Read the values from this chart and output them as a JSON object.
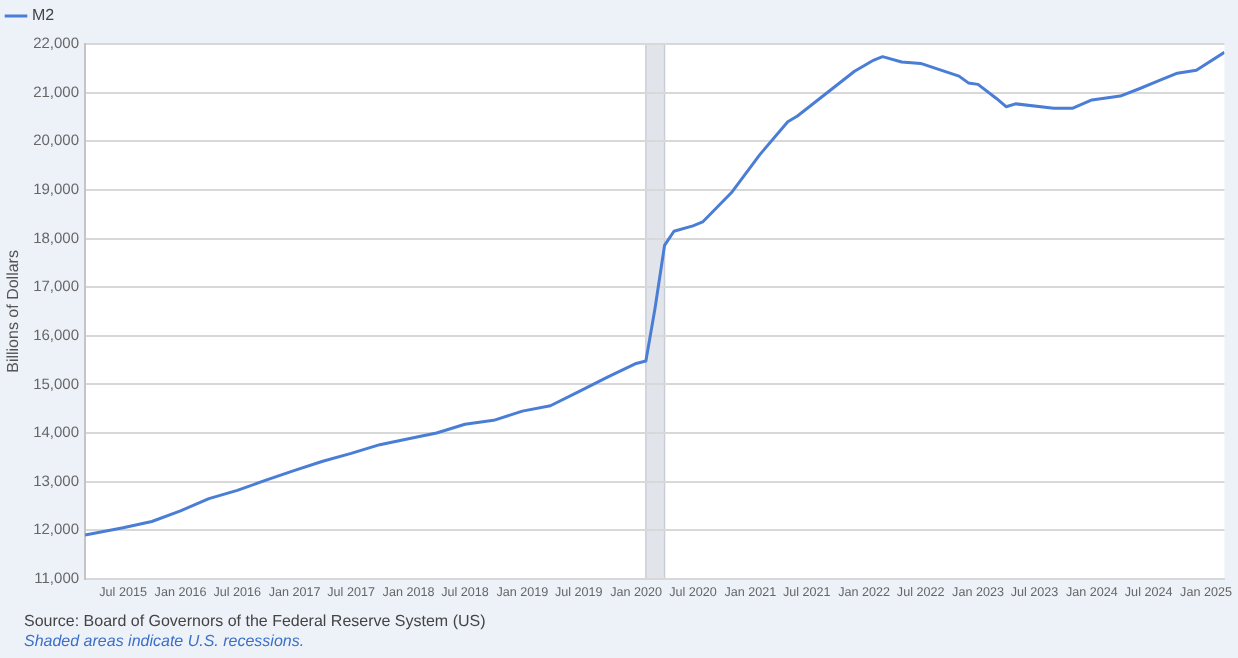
{
  "chart_data": {
    "type": "line",
    "ylabel": "Billions of Dollars",
    "legend": "top left",
    "grid": "y",
    "marker": "none",
    "line_style": "solid",
    "annotations": [
      "Source: Board of Governors of the Federal Reserve System (US)",
      "Shaded areas indicate U.S. recessions."
    ],
    "bands": [
      {
        "axis": "x",
        "from": "2020-02",
        "to": "2020-04",
        "color": "#e1e4ea"
      }
    ],
    "xlim": [
      "2015-03",
      "2025-03"
    ],
    "xticks": [
      {
        "value": "2015-07",
        "label": "Jul 2015"
      },
      {
        "value": "2016-01",
        "label": "Jan 2016"
      },
      {
        "value": "2016-07",
        "label": "Jul 2016"
      },
      {
        "value": "2017-01",
        "label": "Jan 2017"
      },
      {
        "value": "2017-07",
        "label": "Jul 2017"
      },
      {
        "value": "2018-01",
        "label": "Jan 2018"
      },
      {
        "value": "2018-07",
        "label": "Jul 2018"
      },
      {
        "value": "2019-01",
        "label": "Jan 2019"
      },
      {
        "value": "2019-07",
        "label": "Jul 2019"
      },
      {
        "value": "2020-01",
        "label": "Jan 2020"
      },
      {
        "value": "2020-07",
        "label": "Jul 2020"
      },
      {
        "value": "2021-01",
        "label": "Jan 2021"
      },
      {
        "value": "2021-07",
        "label": "Jul 2021"
      },
      {
        "value": "2022-01",
        "label": "Jan 2022"
      },
      {
        "value": "2022-07",
        "label": "Jul 2022"
      },
      {
        "value": "2023-01",
        "label": "Jan 2023"
      },
      {
        "value": "2023-07",
        "label": "Jul 2023"
      },
      {
        "value": "2024-01",
        "label": "Jan 2024"
      },
      {
        "value": "2024-07",
        "label": "Jul 2024"
      },
      {
        "value": "2025-01",
        "label": "Jan 2025"
      }
    ],
    "ylim": [
      11000,
      22000
    ],
    "yticks": [
      {
        "value": 11000,
        "label": "11,000"
      },
      {
        "value": 12000,
        "label": "12,000"
      },
      {
        "value": 13000,
        "label": "13,000"
      },
      {
        "value": 14000,
        "label": "14,000"
      },
      {
        "value": 15000,
        "label": "15,000"
      },
      {
        "value": 16000,
        "label": "16,000"
      },
      {
        "value": 17000,
        "label": "17,000"
      },
      {
        "value": 18000,
        "label": "18,000"
      },
      {
        "value": 19000,
        "label": "19,000"
      },
      {
        "value": 20000,
        "label": "20,000"
      },
      {
        "value": 21000,
        "label": "21,000"
      },
      {
        "value": 22000,
        "label": "22,000"
      }
    ],
    "series": [
      {
        "name": "M2",
        "color": "#4a7dd6",
        "x": [
          "2015-03",
          "2015-07",
          "2015-10",
          "2016-01",
          "2016-04",
          "2016-07",
          "2016-10",
          "2017-01",
          "2017-04",
          "2017-07",
          "2017-10",
          "2018-01",
          "2018-04",
          "2018-07",
          "2018-10",
          "2019-01",
          "2019-04",
          "2019-07",
          "2019-10",
          "2020-01",
          "2020-02",
          "2020-03",
          "2020-04",
          "2020-05",
          "2020-07",
          "2020-08",
          "2020-11",
          "2021-02",
          "2021-05",
          "2021-06",
          "2021-12",
          "2022-02",
          "2022-03",
          "2022-05",
          "2022-07",
          "2022-11",
          "2022-12",
          "2023-01",
          "2023-03",
          "2023-04",
          "2023-05",
          "2023-09",
          "2023-11",
          "2024-01",
          "2024-04",
          "2024-06",
          "2024-08",
          "2024-10",
          "2024-12",
          "2025-03"
        ],
        "values": [
          11900,
          12050,
          12180,
          12400,
          12650,
          12820,
          13030,
          13230,
          13420,
          13580,
          13760,
          13880,
          14000,
          14180,
          14260,
          14450,
          14560,
          14850,
          15150,
          15430,
          15480,
          16550,
          17860,
          18150,
          18260,
          18340,
          18940,
          19730,
          20400,
          20520,
          21440,
          21670,
          21740,
          21630,
          21600,
          21340,
          21200,
          21170,
          20880,
          20710,
          20770,
          20680,
          20680,
          20850,
          20930,
          21080,
          21240,
          21400,
          21460,
          21830
        ]
      }
    ]
  }
}
